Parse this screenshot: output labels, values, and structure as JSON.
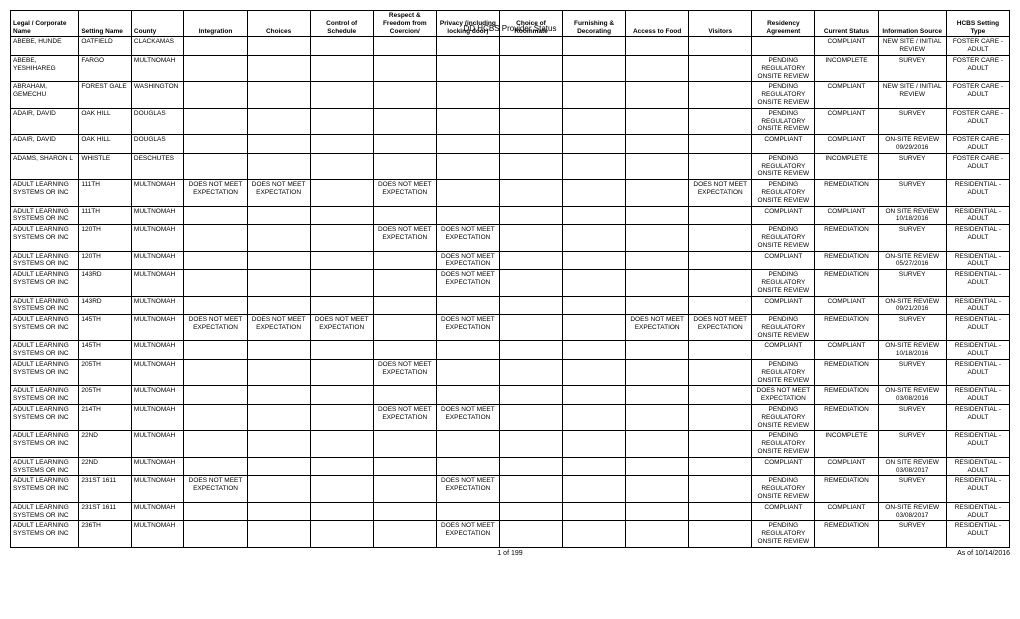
{
  "title": "DD HCBS Provider Status",
  "footer_page": "1 of 199",
  "footer_date": "As of 10/14/2016",
  "headers": [
    "Legal / Corporate Name",
    "Setting Name",
    "County",
    "Integration",
    "Choices",
    "Control of Schedule",
    "Respect & Freedom from Coercion/",
    "Privacy (including locking door)",
    "Choice of Roommate",
    "Furnishing & Decorating",
    "Access to Food",
    "Visitors",
    "Residency Agreement",
    "Current Status",
    "Information Source",
    "HCBS Setting Type"
  ],
  "rows": [
    [
      "ABEBE, HUNDE",
      "OATFIELD",
      "CLACKAMAS",
      "",
      "",
      "",
      "",
      "",
      "",
      "",
      "",
      "",
      "",
      "COMPLIANT",
      "NEW SITE / INITIAL REVIEW",
      "FOSTER CARE - ADULT"
    ],
    [
      "ABEBE, YESHIHAREG",
      "FARGO",
      "MULTNOMAH",
      "",
      "",
      "",
      "",
      "",
      "",
      "",
      "",
      "",
      "PENDING REGULATORY ONSITE REVIEW",
      "INCOMPLETE",
      "SURVEY",
      "FOSTER CARE - ADULT"
    ],
    [
      "ABRAHAM, GEMECHU",
      "FOREST GALE",
      "WASHINGTON",
      "",
      "",
      "",
      "",
      "",
      "",
      "",
      "",
      "",
      "PENDING REGULATORY ONSITE REVIEW",
      "COMPLIANT",
      "NEW SITE / INITIAL REVIEW",
      "FOSTER CARE - ADULT"
    ],
    [
      "ADAIR, DAVID",
      "OAK HILL",
      "DOUGLAS",
      "",
      "",
      "",
      "",
      "",
      "",
      "",
      "",
      "",
      "PENDING REGULATORY ONSITE REVIEW",
      "COMPLIANT",
      "SURVEY",
      "FOSTER CARE - ADULT"
    ],
    [
      "ADAIR, DAVID",
      "OAK HILL",
      "DOUGLAS",
      "",
      "",
      "",
      "",
      "",
      "",
      "",
      "",
      "",
      "COMPLIANT",
      "COMPLIANT",
      "ON-SITE REVIEW 09/29/2016",
      "FOSTER CARE - ADULT"
    ],
    [
      "ADAMS, SHARON L",
      "WHISTLE",
      "DESCHUTES",
      "",
      "",
      "",
      "",
      "",
      "",
      "",
      "",
      "",
      "PENDING REGULATORY ONSITE REVIEW",
      "INCOMPLETE",
      "SURVEY",
      "FOSTER CARE - ADULT"
    ],
    [
      "ADULT LEARNING SYSTEMS OR INC",
      "111TH",
      "MULTNOMAH",
      "DOES NOT MEET EXPECTATION",
      "DOES NOT MEET EXPECTATION",
      "",
      "DOES NOT MEET EXPECTATION",
      "",
      "",
      "",
      "",
      "DOES NOT MEET EXPECTATION",
      "PENDING REGULATORY ONSITE REVIEW",
      "REMEDIATION",
      "SURVEY",
      "RESIDENTIAL - ADULT"
    ],
    [
      "ADULT LEARNING SYSTEMS OR INC",
      "111TH",
      "MULTNOMAH",
      "",
      "",
      "",
      "",
      "",
      "",
      "",
      "",
      "",
      "COMPLIANT",
      "COMPLIANT",
      "ON SITE REVIEW 10/18/2016",
      "RESIDENTIAL - ADULT"
    ],
    [
      "ADULT LEARNING SYSTEMS OR INC",
      "120TH",
      "MULTNOMAH",
      "",
      "",
      "",
      "DOES NOT MEET EXPECTATION",
      "DOES NOT MEET EXPECTATION",
      "",
      "",
      "",
      "",
      "PENDING REGULATORY ONSITE REVIEW",
      "REMEDIATION",
      "SURVEY",
      "RESIDENTIAL - ADULT"
    ],
    [
      "ADULT LEARNING SYSTEMS OR INC",
      "120TH",
      "MULTNOMAH",
      "",
      "",
      "",
      "",
      "DOES NOT MEET EXPECTATION",
      "",
      "",
      "",
      "",
      "COMPLIANT",
      "REMEDIATION",
      "ON-SITE REVIEW 05/27/2016",
      "RESIDENTIAL - ADULT"
    ],
    [
      "ADULT LEARNING SYSTEMS OR INC",
      "143RD",
      "MULTNOMAH",
      "",
      "",
      "",
      "",
      "DOES NOT MEET EXPECTATION",
      "",
      "",
      "",
      "",
      "PENDING REGULATORY ONSITE REVIEW",
      "REMEDIATION",
      "SURVEY",
      "RESIDENTIAL - ADULT"
    ],
    [
      "ADULT LEARNING SYSTEMS OR INC",
      "143RD",
      "MULTNOMAH",
      "",
      "",
      "",
      "",
      "",
      "",
      "",
      "",
      "",
      "COMPLIANT",
      "COMPLIANT",
      "ON-SITE REVIEW 09/21/2016",
      "RESIDENTIAL - ADULT"
    ],
    [
      "ADULT LEARNING SYSTEMS OR INC",
      "145TH",
      "MULTNOMAH",
      "DOES NOT MEET EXPECTATION",
      "DOES NOT MEET EXPECTATION",
      "DOES NOT MEET EXPECTATION",
      "",
      "DOES NOT MEET EXPECTATION",
      "",
      "",
      "DOES NOT MEET EXPECTATION",
      "DOES NOT MEET EXPECTATION",
      "PENDING REGULATORY ONSITE REVIEW",
      "REMEDIATION",
      "SURVEY",
      "RESIDENTIAL - ADULT"
    ],
    [
      "ADULT LEARNING SYSTEMS OR INC",
      "145TH",
      "MULTNOMAH",
      "",
      "",
      "",
      "",
      "",
      "",
      "",
      "",
      "",
      "COMPLIANT",
      "COMPLIANT",
      "ON-SITE REVIEW 10/18/2016",
      "RESIDENTIAL - ADULT"
    ],
    [
      "ADULT LEARNING SYSTEMS OR INC",
      "205TH",
      "MULTNOMAH",
      "",
      "",
      "",
      "DOES NOT MEET EXPECTATION",
      "",
      "",
      "",
      "",
      "",
      "PENDING REGULATORY ONSITE REVIEW",
      "REMEDIATION",
      "SURVEY",
      "RESIDENTIAL - ADULT"
    ],
    [
      "ADULT LEARNING SYSTEMS OR INC",
      "205TH",
      "MULTNOMAH",
      "",
      "",
      "",
      "",
      "",
      "",
      "",
      "",
      "",
      "DOES NOT MEET EXPECTATION",
      "REMEDIATION",
      "ON-SITE REVIEW 03/08/2016",
      "RESIDENTIAL - ADULT"
    ],
    [
      "ADULT LEARNING SYSTEMS OR INC",
      "214TH",
      "MULTNOMAH",
      "",
      "",
      "",
      "DOES NOT MEET EXPECTATION",
      "DOES NOT MEET EXPECTATION",
      "",
      "",
      "",
      "",
      "PENDING REGULATORY ONSITE REVIEW",
      "REMEDIATION",
      "SURVEY",
      "RESIDENTIAL - ADULT"
    ],
    [
      "ADULT LEARNING SYSTEMS OR INC",
      "22ND",
      "MULTNOMAH",
      "",
      "",
      "",
      "",
      "",
      "",
      "",
      "",
      "",
      "PENDING REGULATORY ONSITE REVIEW",
      "INCOMPLETE",
      "SURVEY",
      "RESIDENTIAL - ADULT"
    ],
    [
      "ADULT LEARNING SYSTEMS OR INC",
      "22ND",
      "MULTNOMAH",
      "",
      "",
      "",
      "",
      "",
      "",
      "",
      "",
      "",
      "COMPLIANT",
      "COMPLIANT",
      "ON SITE REVIEW 03/08/2017",
      "RESIDENTIAL - ADULT"
    ],
    [
      "ADULT LEARNING SYSTEMS OR INC",
      "231ST 1611",
      "MULTNOMAH",
      "DOES NOT MEET EXPECTATION",
      "",
      "",
      "",
      "DOES NOT MEET EXPECTATION",
      "",
      "",
      "",
      "",
      "PENDING REGULATORY ONSITE REVIEW",
      "REMEDIATION",
      "SURVEY",
      "RESIDENTIAL - ADULT"
    ],
    [
      "ADULT LEARNING SYSTEMS OR INC",
      "231ST 1611",
      "MULTNOMAH",
      "",
      "",
      "",
      "",
      "",
      "",
      "",
      "",
      "",
      "COMPLIANT",
      "COMPLIANT",
      "ON-SITE REVIEW 03/08/2017",
      "RESIDENTIAL - ADULT"
    ],
    [
      "ADULT LEARNING SYSTEMS OR INC",
      "236TH",
      "MULTNOMAH",
      "",
      "",
      "",
      "",
      "DOES NOT MEET EXPECTATION",
      "",
      "",
      "",
      "",
      "PENDING REGULATORY ONSITE REVIEW",
      "REMEDIATION",
      "SURVEY",
      "RESIDENTIAL - ADULT"
    ]
  ],
  "center_cols": [
    3,
    4,
    5,
    6,
    7,
    8,
    9,
    10,
    11,
    12,
    13,
    14,
    15
  ]
}
